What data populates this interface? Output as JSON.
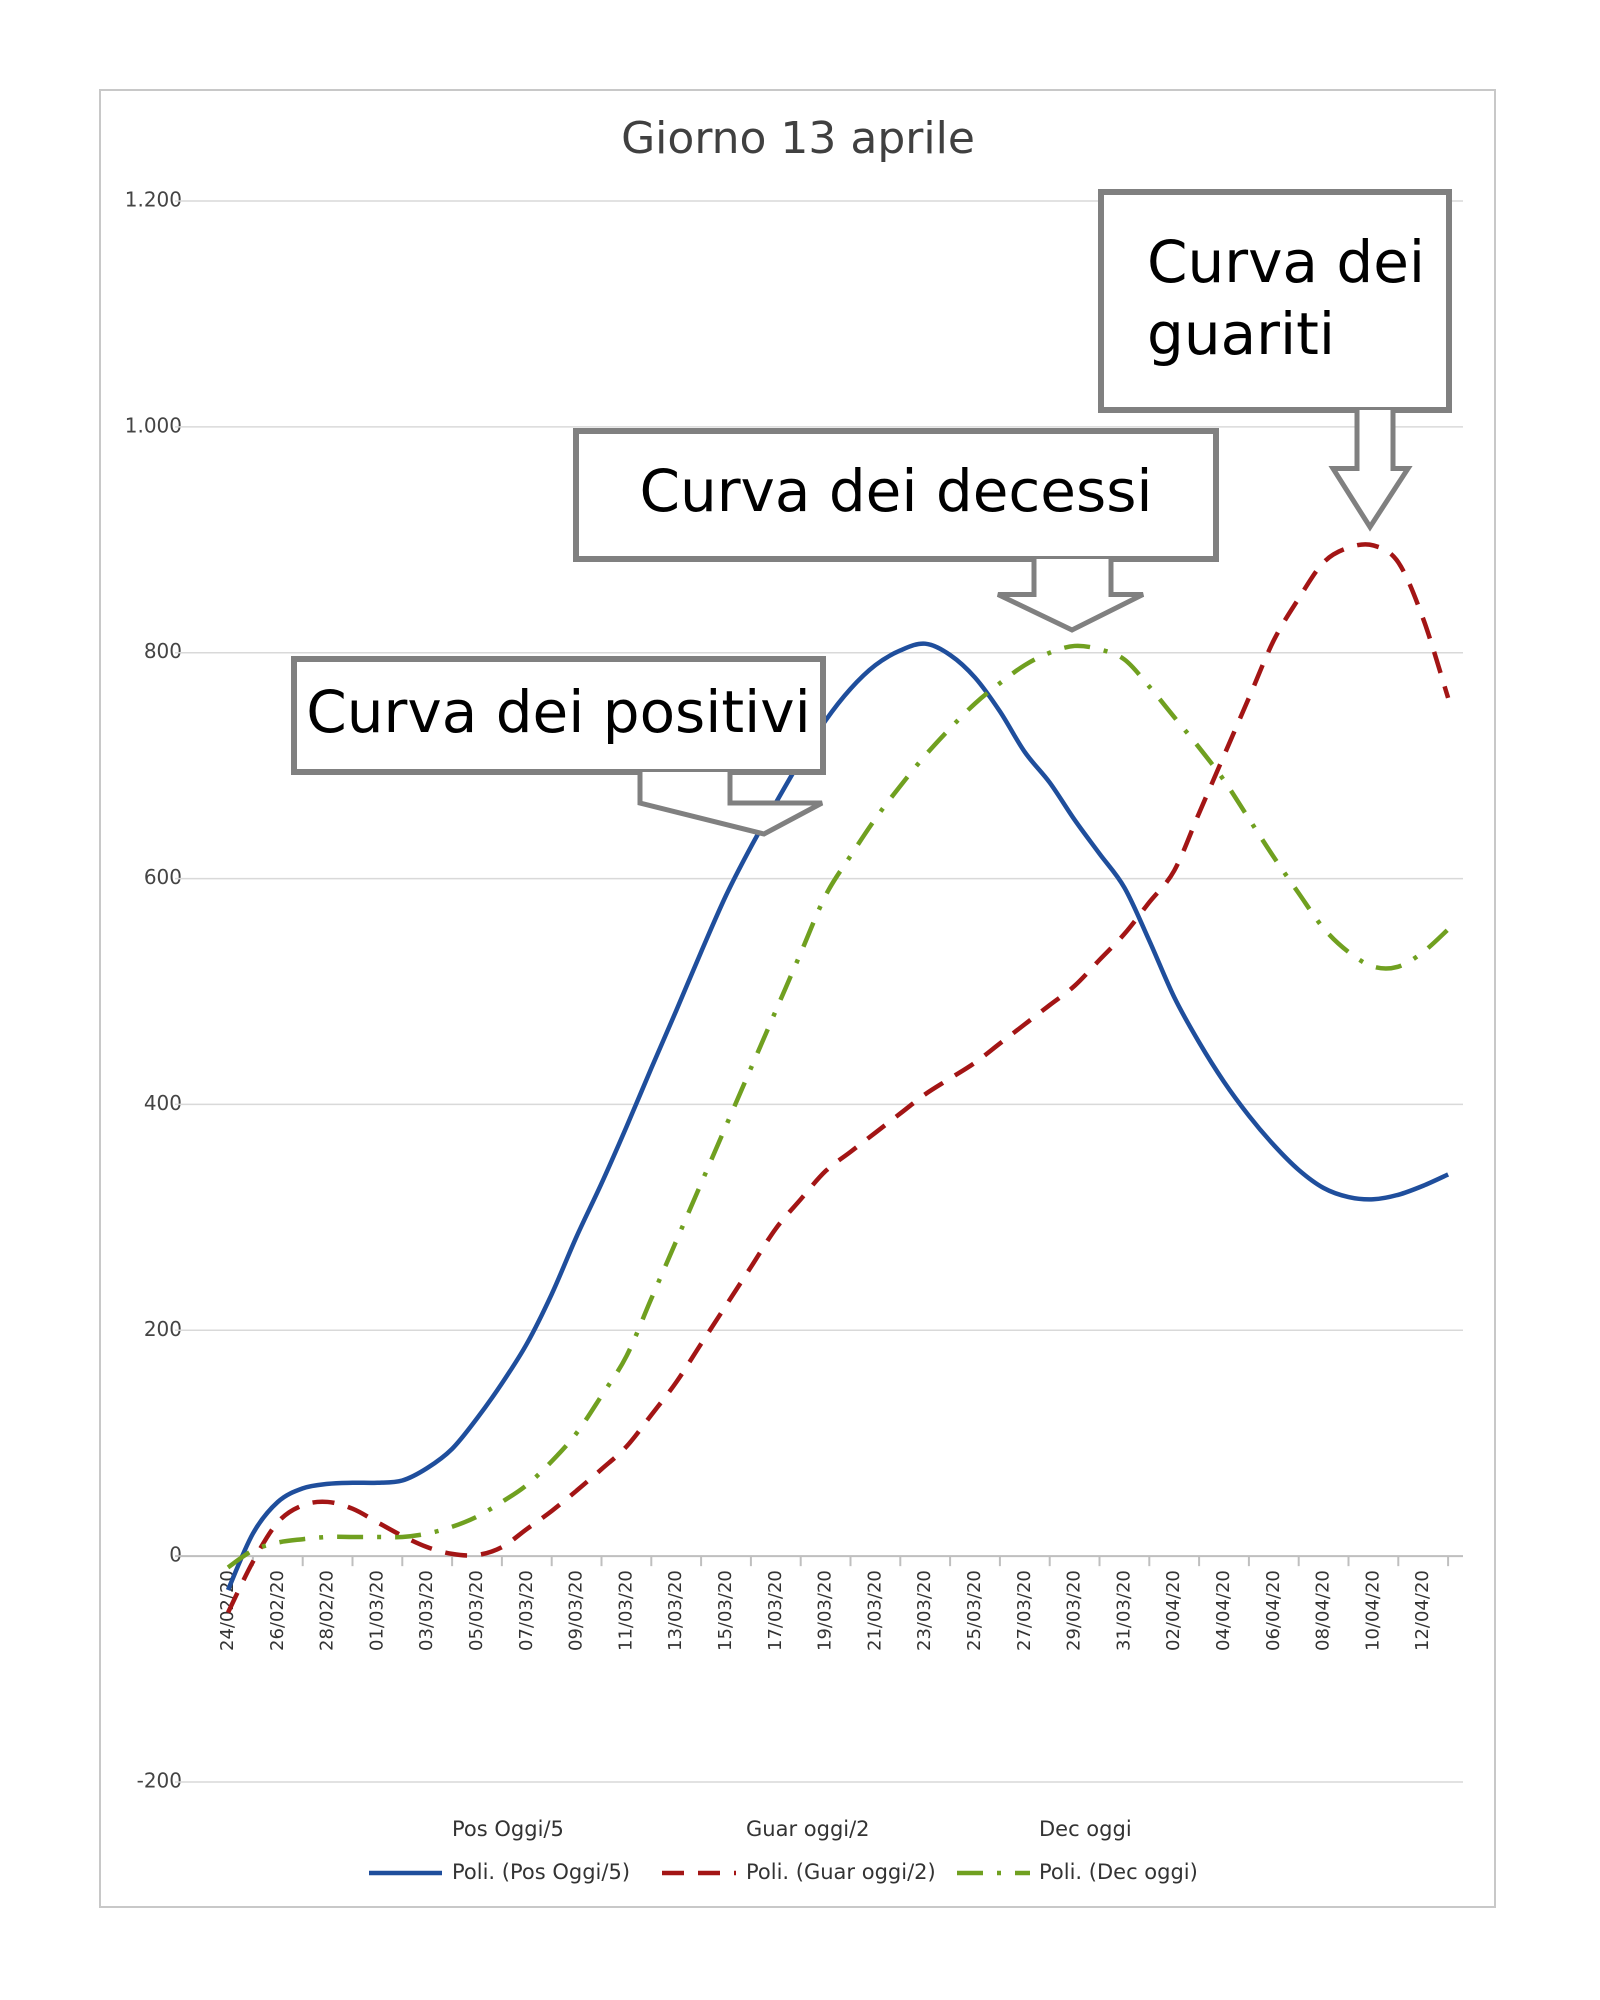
{
  "chart_data": {
    "type": "line",
    "title": "Giorno 13 aprile",
    "categories": [
      "24/02/20",
      null,
      "26/02/20",
      null,
      "28/02/20",
      null,
      "01/03/20",
      null,
      "03/03/20",
      null,
      "05/03/20",
      null,
      "07/03/20",
      null,
      "09/03/20",
      null,
      "11/03/20",
      null,
      "13/03/20",
      null,
      "15/03/20",
      null,
      "17/03/20",
      null,
      "19/03/20",
      null,
      "21/03/20",
      null,
      "23/03/20",
      null,
      "25/03/20",
      null,
      "27/03/20",
      null,
      "29/03/20",
      null,
      "31/03/20",
      null,
      "02/04/20",
      null,
      "04/04/20",
      null,
      "06/04/20",
      null,
      "08/04/20",
      null,
      "10/04/20",
      null,
      "12/04/20",
      null
    ],
    "series": [
      {
        "name": "Poli. (Pos Oggi/5)",
        "color": "#1f4e9c",
        "dash": "solid",
        "values": [
          -30,
          20,
          48,
          60,
          64,
          65,
          65,
          67,
          78,
          95,
          122,
          153,
          188,
          232,
          283,
          330,
          380,
          432,
          483,
          535,
          585,
          628,
          667,
          705,
          740,
          768,
          789,
          802,
          808,
          798,
          778,
          748,
          712,
          685,
          652,
          622,
          592,
          545,
          495,
          455,
          420,
          390,
          364,
          342,
          326,
          318,
          316,
          320,
          328,
          338
        ]
      },
      {
        "name": "Poli. (Guar oggi/2)",
        "color": "#a31515",
        "dash": "dashed",
        "values": [
          -50,
          -5,
          30,
          45,
          48,
          42,
          30,
          18,
          8,
          2,
          1,
          8,
          24,
          40,
          58,
          77,
          97,
          125,
          154,
          188,
          222,
          256,
          290,
          316,
          341,
          358,
          375,
          392,
          409,
          423,
          437,
          454,
          471,
          488,
          505,
          528,
          551,
          579,
          607,
          658,
          709,
          760,
          811,
          848,
          880,
          893,
          895,
          880,
          830,
          760
        ]
      },
      {
        "name": "Poli. (Dec oggi)",
        "color": "#70a020",
        "dash": "dashdot",
        "values": [
          -10,
          5,
          12,
          15,
          17,
          17,
          17,
          17,
          20,
          26,
          35,
          48,
          63,
          84,
          109,
          142,
          177,
          228,
          279,
          330,
          381,
          432,
          483,
          534,
          585,
          620,
          653,
          682,
          709,
          733,
          755,
          773,
          789,
          800,
          806,
          803,
          794,
          770,
          743,
          716,
          687,
          653,
          619,
          587,
          556,
          535,
          522,
          522,
          535,
          555
        ]
      }
    ],
    "legend_extra": [
      "Pos Oggi/5",
      "Guar oggi/2",
      "Dec oggi"
    ],
    "ylim": [
      -200,
      1200
    ],
    "yticks": [
      -200,
      0,
      200,
      400,
      600,
      800,
      {
        "value": 1000,
        "label": "1.000"
      },
      {
        "value": 1200,
        "label": "1.200"
      }
    ],
    "grid": true,
    "legend": "bottom",
    "annotations": [
      {
        "lines": [
          "Curva dei positivi"
        ]
      },
      {
        "lines": [
          "Curva dei decessi"
        ]
      },
      {
        "lines": [
          "Curva dei",
          "guariti"
        ]
      }
    ]
  }
}
